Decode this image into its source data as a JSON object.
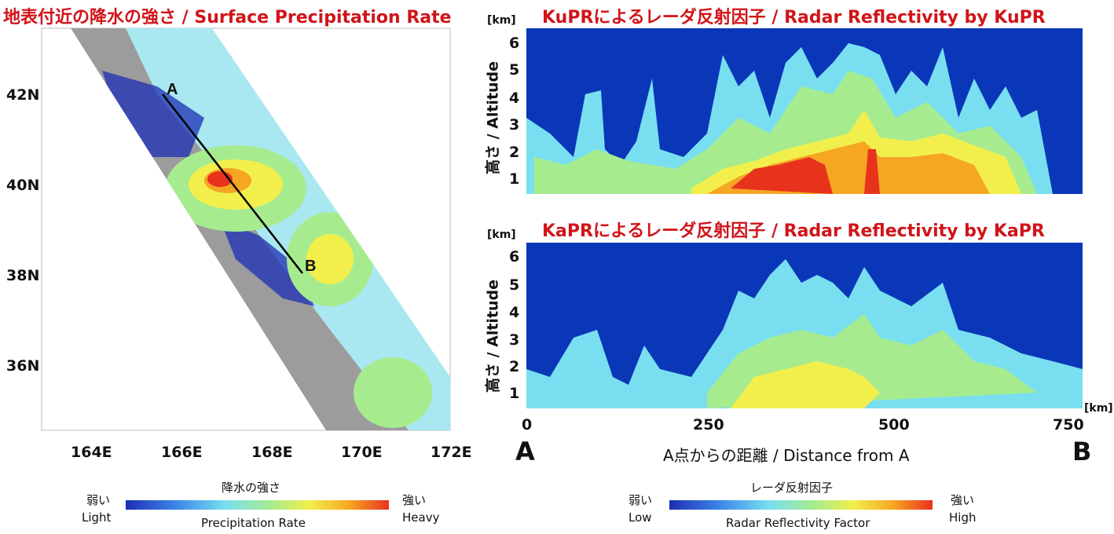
{
  "chart_data": [
    {
      "type": "heatmap",
      "title": "地表付近の降水の強さ / Surface Precipitation Rate",
      "x_ticks": [
        "164E",
        "166E",
        "168E",
        "170E",
        "172E"
      ],
      "y_ticks": [
        "42N",
        "40N",
        "38N",
        "36N"
      ],
      "x_range": [
        163,
        172
      ],
      "y_range": [
        34.6,
        43.3
      ],
      "xlabel": "",
      "ylabel": "",
      "markers": [
        {
          "label": "A",
          "lon": 165.7,
          "lat": 42.05
        },
        {
          "label": "B",
          "lon": 168.8,
          "lat": 38.2
        }
      ],
      "legend": {
        "title": "降水の強さ",
        "subtitle": "Precipitation Rate",
        "low": "弱い",
        "low_en": "Light",
        "high": "強い",
        "high_en": "Heavy"
      }
    },
    {
      "type": "heatmap",
      "title": "KuPRによるレーダ反射因子 / Radar Reflectivity by KuPR",
      "ylabel": "高さ / Altitude",
      "y_unit": "[km]",
      "y_ticks": [
        "1",
        "2",
        "3",
        "4",
        "5",
        "6"
      ],
      "y_range": [
        0.5,
        6.6
      ],
      "x_range": [
        0,
        750
      ]
    },
    {
      "type": "heatmap",
      "title": "KaPRによるレーダ反射因子 / Radar Reflectivity by KaPR",
      "ylabel": "高さ / Altitude",
      "y_unit": "[km]",
      "y_ticks": [
        "1",
        "2",
        "3",
        "4",
        "5",
        "6"
      ],
      "y_range": [
        0.5,
        6.6
      ],
      "x_range": [
        0,
        750
      ],
      "x_unit": "[km]",
      "x_ticks": [
        "0",
        "250",
        "500",
        "750"
      ],
      "xlabel": "A点からの距離 / Distance from A",
      "x_start_label": "A",
      "x_end_label": "B",
      "legend": {
        "title": "レーダ反射因子",
        "subtitle": "Radar Reflectivity Factor",
        "low": "弱い",
        "low_en": "Low",
        "high": "強い",
        "high_en": "High"
      }
    }
  ],
  "colors": {
    "title": "#d01419",
    "background_blue": "#0a36b8",
    "no_data_gray": "#9c9c9c",
    "scale": [
      "#1c2fb5",
      "#3f8ae8",
      "#79dff0",
      "#a6ec8f",
      "#f2ef4c",
      "#f5a623",
      "#e8331c"
    ]
  }
}
